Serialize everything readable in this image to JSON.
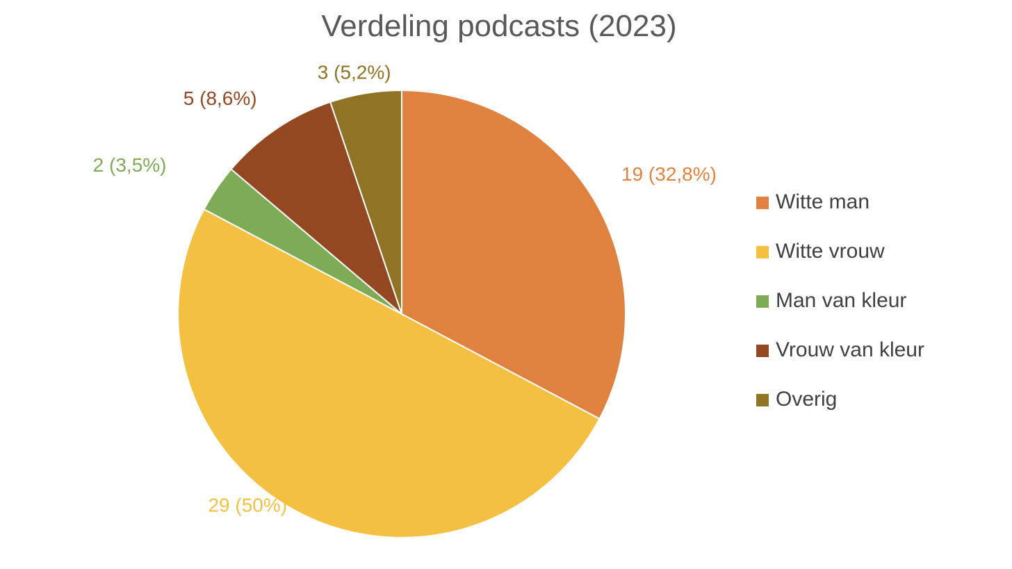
{
  "chart_data": {
    "type": "pie",
    "title": "Verdeling podcasts (2023)",
    "legend_position": "right",
    "start_angle_deg": 0,
    "direction": "clockwise",
    "slices": [
      {
        "label": "Witte man",
        "value": 19,
        "data_label": "19 (32,8%)",
        "color": "#E0823F"
      },
      {
        "label": "Witte vrouw",
        "value": 29,
        "data_label": "29 (50%)",
        "color": "#F4C042"
      },
      {
        "label": "Man van kleur",
        "value": 2,
        "data_label": "2 (3,5%)",
        "color": "#7EAB55"
      },
      {
        "label": "Vrouw van kleur",
        "value": 5,
        "data_label": "5 (8,6%)",
        "color": "#934821"
      },
      {
        "label": "Overig",
        "value": 3,
        "data_label": "3 (5,2%)",
        "color": "#917325"
      }
    ]
  }
}
